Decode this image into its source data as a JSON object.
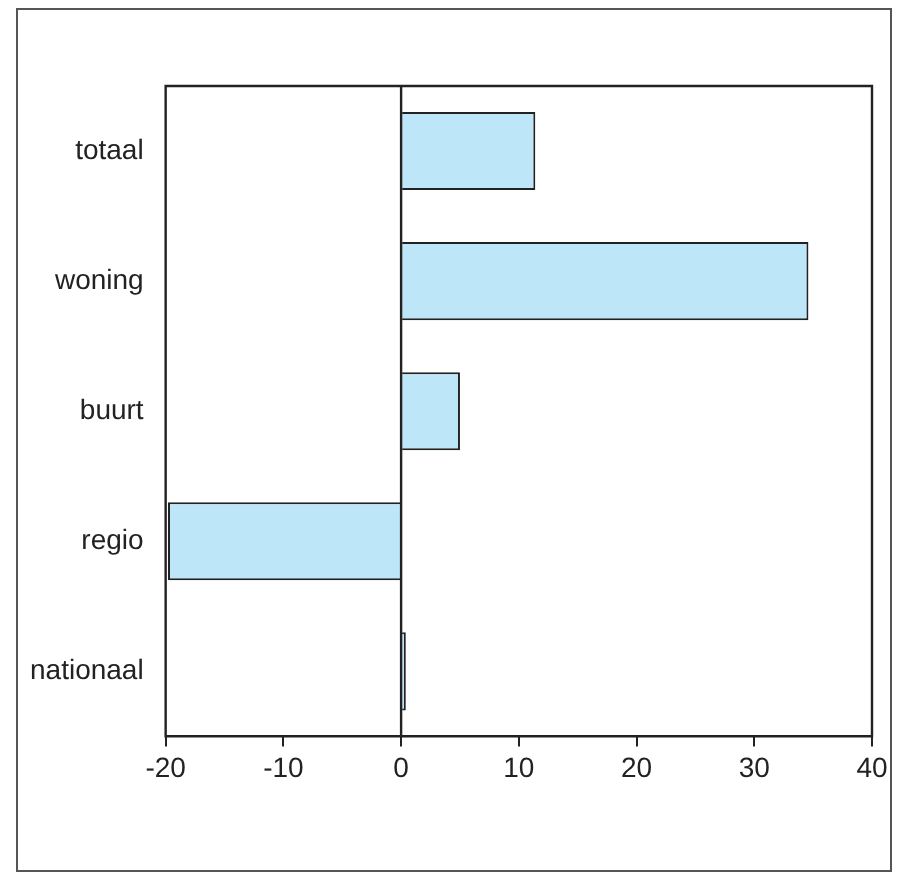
{
  "chart_data": {
    "type": "bar",
    "orientation": "horizontal",
    "categories": [
      "totaal",
      "woning",
      "buurt",
      "regio",
      "nationaal"
    ],
    "values": [
      11.4,
      34.6,
      5.0,
      -19.8,
      0.4
    ],
    "color": "#bde6f8",
    "xlim": [
      -20,
      40
    ],
    "xticks": [
      -20,
      -10,
      0,
      10,
      20,
      30,
      40
    ],
    "legend": false
  }
}
